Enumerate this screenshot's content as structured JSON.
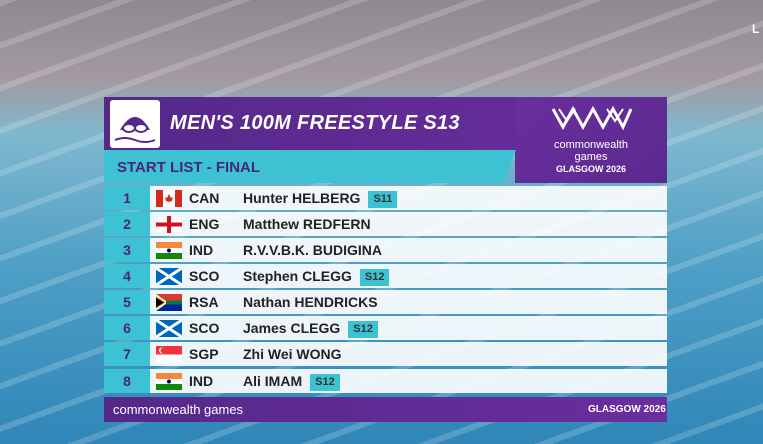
{
  "corner_label": "L",
  "header": {
    "title": "MEN'S 100M FREESTYLE S13",
    "subtitle": "START LIST - FINAL"
  },
  "logo": {
    "line1": "commonwealth",
    "line2": "games",
    "line3": "GLASGOW 2026"
  },
  "rows": [
    {
      "lane": 1,
      "country": "CAN",
      "name": "Hunter HELBERG",
      "class": "S11"
    },
    {
      "lane": 2,
      "country": "ENG",
      "name": "Matthew REDFERN"
    },
    {
      "lane": 3,
      "country": "IND",
      "name": "R.V.V.B.K. BUDIGINA"
    },
    {
      "lane": 4,
      "country": "SCO",
      "name": "Stephen CLEGG",
      "class": "S12"
    },
    {
      "lane": 5,
      "country": "RSA",
      "name": "Nathan HENDRICKS"
    },
    {
      "lane": 6,
      "country": "SCO",
      "name": "James CLEGG",
      "class": "S12"
    },
    {
      "lane": 7,
      "country": "SGP",
      "name": "Zhi Wei WONG"
    },
    {
      "lane": 8,
      "country": "IND",
      "name": "Ali IMAM",
      "class": "S12"
    }
  ],
  "footer": {
    "left": "commonwealth games",
    "right": "GLASGOW 2026"
  }
}
